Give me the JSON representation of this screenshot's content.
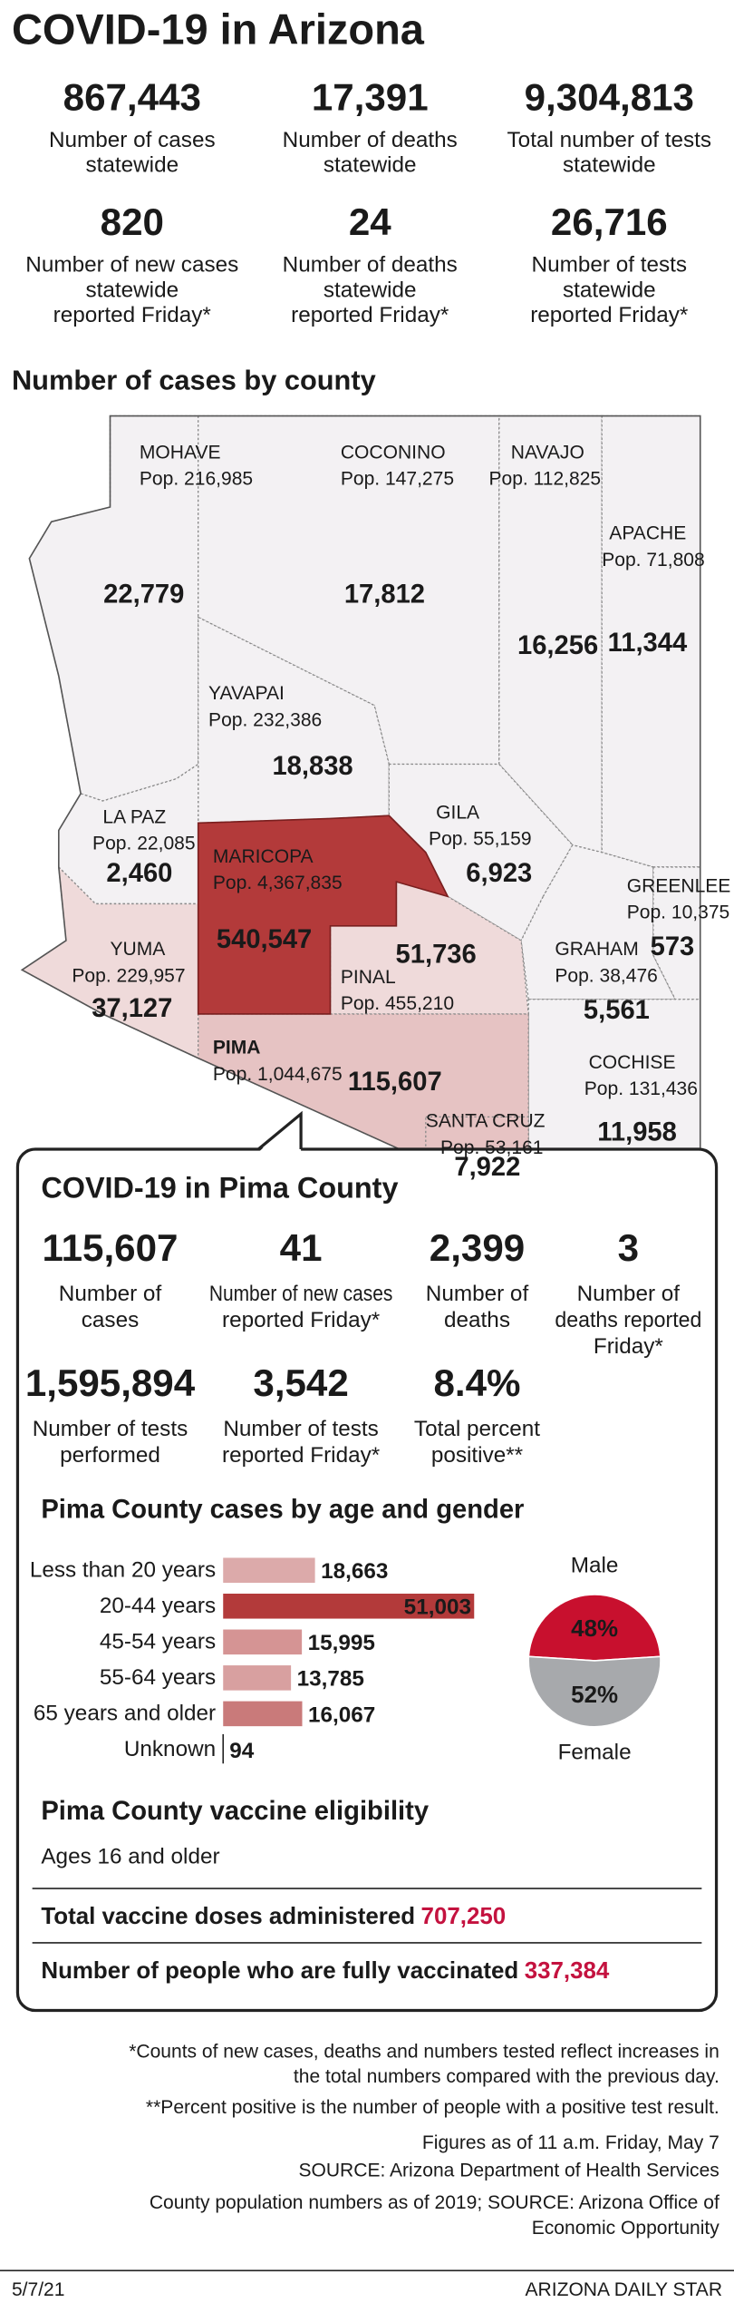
{
  "header": {
    "title": "COVID-19 in Arizona"
  },
  "statewide": [
    {
      "value": "867,443",
      "label": [
        "Number of cases",
        "statewide"
      ]
    },
    {
      "value": "17,391",
      "label": [
        "Number of deaths",
        "statewide"
      ]
    },
    {
      "value": "9,304,813",
      "label": [
        "Total number of tests",
        "statewide"
      ]
    },
    {
      "value": "820",
      "label": [
        "Number of new cases",
        "statewide",
        "reported Friday*"
      ]
    },
    {
      "value": "24",
      "label": [
        "Number of deaths",
        "statewide",
        "reported Friday*"
      ]
    },
    {
      "value": "26,716",
      "label": [
        "Number of tests",
        "statewide",
        "reported Friday*"
      ]
    }
  ],
  "map": {
    "title": "Number of cases by county",
    "counties": [
      {
        "name": "MOHAVE",
        "population": "Pop. 216,985",
        "cases": "22,779"
      },
      {
        "name": "COCONINO",
        "population": "Pop. 147,275",
        "cases": "17,812"
      },
      {
        "name": "NAVAJO",
        "population": "Pop. 112,825",
        "cases": "16,256"
      },
      {
        "name": "APACHE",
        "population": "Pop. 71,808",
        "cases": "11,344"
      },
      {
        "name": "YAVAPAI",
        "population": "Pop. 232,386",
        "cases": "18,838"
      },
      {
        "name": "LA PAZ",
        "population": "Pop. 22,085",
        "cases": "2,460"
      },
      {
        "name": "MARICOPA",
        "population": "Pop. 4,367,835",
        "cases": "540,547"
      },
      {
        "name": "GILA",
        "population": "Pop. 55,159",
        "cases": "6,923"
      },
      {
        "name": "GREENLEE",
        "population": "Pop. 10,375",
        "cases": "573"
      },
      {
        "name": "PINAL",
        "population": "Pop. 455,210",
        "cases": "51,736"
      },
      {
        "name": "GRAHAM",
        "population": "Pop. 38,476",
        "cases": "5,561"
      },
      {
        "name": "YUMA",
        "population": "Pop. 229,957",
        "cases": "37,127"
      },
      {
        "name": "PIMA",
        "population": "Pop. 1,044,675",
        "cases": "115,607"
      },
      {
        "name": "COCHISE",
        "population": "Pop. 131,436",
        "cases": "11,958"
      },
      {
        "name": "SANTA CRUZ",
        "population": "Pop. 53,161",
        "cases": "7,922"
      }
    ]
  },
  "pima": {
    "title": "COVID-19 in Pima County",
    "stats": [
      {
        "value": "115,607",
        "label": [
          "Number of",
          "cases"
        ]
      },
      {
        "value": "41",
        "label": [
          "Number of new cases",
          "reported Friday*"
        ]
      },
      {
        "value": "2,399",
        "label": [
          "Number of",
          "deaths"
        ]
      },
      {
        "value": "3",
        "label": [
          "Number of",
          "deaths reported",
          "Friday*"
        ]
      },
      {
        "value": "1,595,894",
        "label": [
          "Number of tests",
          "performed"
        ]
      },
      {
        "value": "3,542",
        "label": [
          "Number of tests",
          "reported Friday*"
        ]
      },
      {
        "value": "8.4%",
        "label": [
          "Total percent",
          "positive**"
        ]
      }
    ]
  },
  "chart_data": [
    {
      "type": "bar",
      "title": "Pima County cases by age and gender",
      "categories": [
        "Less than 20 years",
        "20-44 years",
        "45-54 years",
        "55-64 years",
        "65 years and older",
        "Unknown"
      ],
      "values": [
        18663,
        51003,
        15995,
        13785,
        16067,
        94
      ],
      "value_labels": [
        "18,663",
        "51,003",
        "15,995",
        "13,785",
        "16,067",
        "94"
      ],
      "colors": [
        "#dcaaaa",
        "#b33a3a",
        "#d59494",
        "#d8a0a0",
        "#c97a7a",
        "#c97a7a"
      ]
    },
    {
      "type": "pie",
      "categories": [
        "Male",
        "Female"
      ],
      "values": [
        48,
        52
      ],
      "value_labels": [
        "48%",
        "52%"
      ],
      "colors": [
        "#c8102e",
        "#a7a9ac"
      ]
    }
  ],
  "vaccine": {
    "title": "Pima County vaccine eligibility",
    "eligibility": "Ages 16 and older",
    "items": [
      {
        "label": "Total vaccine doses administered",
        "value": "707,250"
      },
      {
        "label": "Number of people who are fully vaccinated",
        "value": "337,384"
      }
    ]
  },
  "footnotes": [
    [
      "*Counts of new cases, deaths and numbers tested reflect increases in",
      "the total numbers compared with the previous day."
    ],
    [
      "**Percent positive is the number of people with a positive test result."
    ],
    [
      "Figures as of 11 a.m. Friday, May 7"
    ],
    [
      "SOURCE: Arizona Department of Health Services"
    ],
    [
      "County population numbers as of 2019; SOURCE: Arizona Office of",
      "Economic Opportunity"
    ]
  ],
  "footer": {
    "date": "5/7/21",
    "publisher": "ARIZONA DAILY STAR"
  }
}
